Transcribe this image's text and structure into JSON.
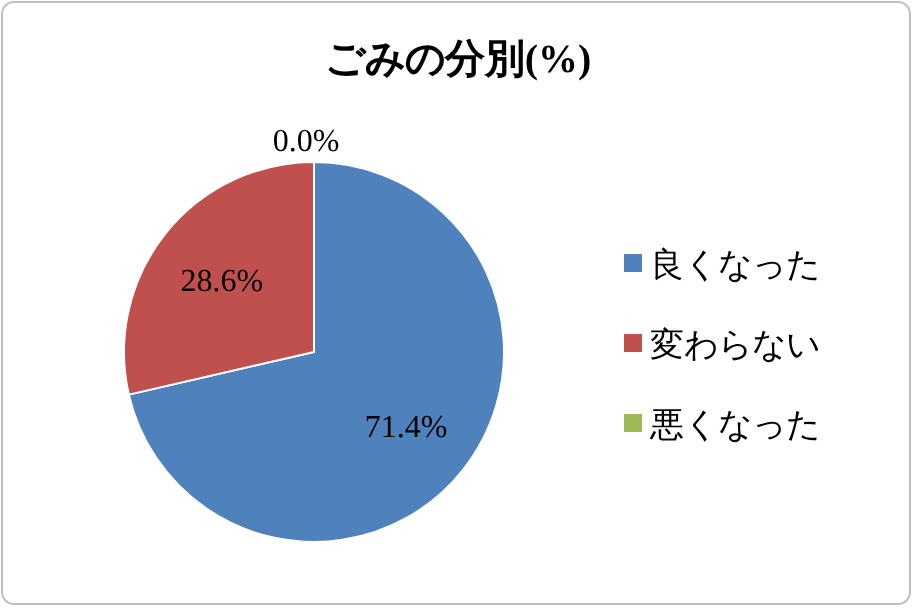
{
  "chart_data": {
    "type": "pie",
    "title": "ごみの分別(%)",
    "categories": [
      "良くなった",
      "変わらない",
      "悪くなった"
    ],
    "values": [
      71.4,
      28.6,
      0.0
    ],
    "colors": [
      "#4f81bd",
      "#c0504d",
      "#9bbb59"
    ],
    "value_labels": [
      "71.4%",
      "28.6%",
      "0.0%"
    ],
    "legend": "right"
  }
}
